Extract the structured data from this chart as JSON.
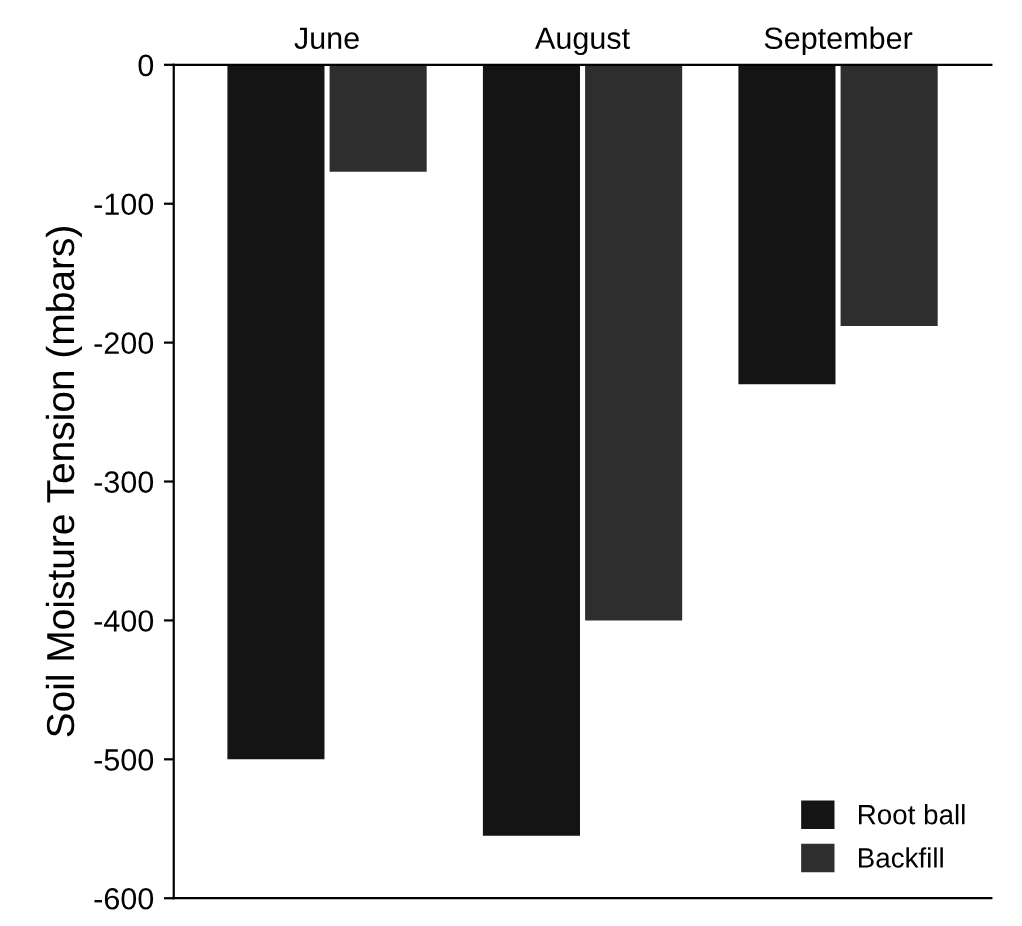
{
  "chart_data": {
    "type": "bar",
    "ylabel": "Soil Moisture Tension (mbars)",
    "categories": [
      "June",
      "August",
      "September"
    ],
    "series": [
      {
        "name": "Root ball",
        "color": "#141414",
        "values": [
          -500,
          -555,
          -230
        ]
      },
      {
        "name": "Backfill",
        "color": "#2e2e2e",
        "values": [
          -77,
          -400,
          -188
        ]
      }
    ],
    "ylim": [
      -600,
      0
    ],
    "yticks": [
      0,
      -100,
      -200,
      -300,
      -400,
      -500,
      -600
    ],
    "legend": "bottom right",
    "grid": false
  }
}
